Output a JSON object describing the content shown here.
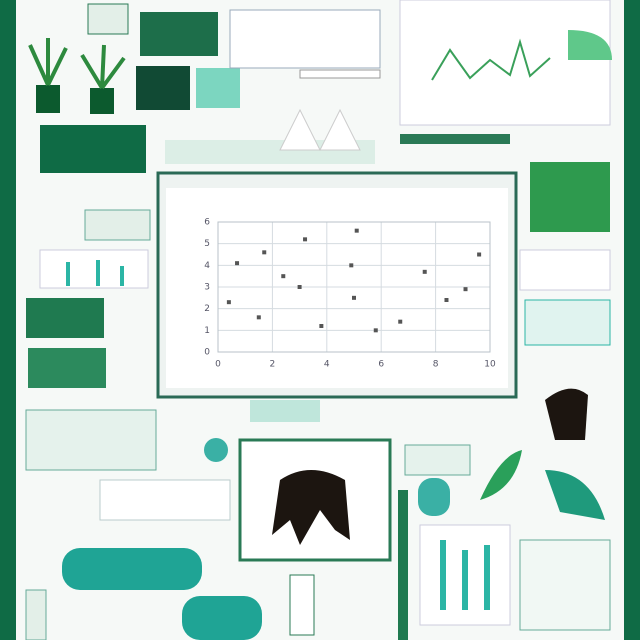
{
  "chart_data": {
    "type": "scatter",
    "x": [
      0.4,
      0.7,
      1.7,
      1.5,
      2.4,
      3.0,
      3.2,
      3.8,
      4.9,
      5.0,
      5.8,
      6.7,
      7.6,
      8.4,
      9.1,
      9.6,
      5.1
    ],
    "y": [
      2.3,
      4.1,
      4.6,
      1.6,
      3.5,
      3.0,
      5.2,
      1.2,
      4.0,
      2.5,
      1.0,
      1.4,
      3.7,
      2.4,
      2.9,
      4.5,
      5.6
    ],
    "color": "#555555",
    "xlim": [
      0,
      10
    ],
    "ylim": [
      0,
      6
    ],
    "xticks": [
      0,
      2,
      4,
      6,
      8,
      10
    ],
    "yticks": [
      0,
      1,
      2,
      3,
      4,
      5,
      6
    ],
    "grid": true
  }
}
